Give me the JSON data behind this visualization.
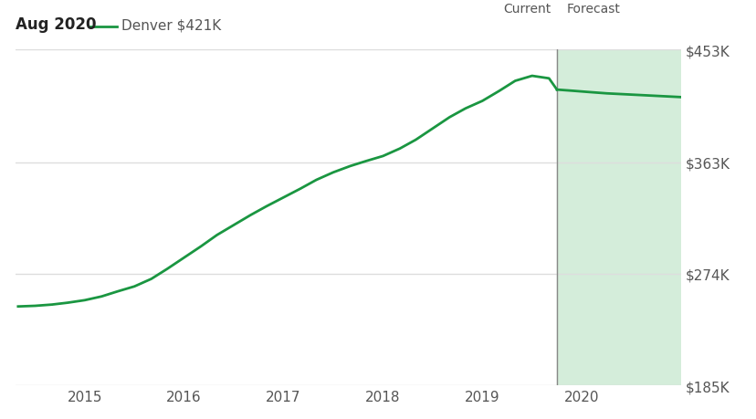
{
  "title_date": "Aug 2020",
  "legend_label": "Denver $421K",
  "line_color": "#1a9641",
  "forecast_bg_color": "#d4edda",
  "current_line_color": "#888888",
  "background_color": "#ffffff",
  "grid_color": "#dddddd",
  "ytick_labels": [
    "$185K",
    "$274K",
    "$363K",
    "$453K"
  ],
  "ytick_values": [
    185000,
    274000,
    363000,
    453000
  ],
  "ylim": [
    185000,
    453000
  ],
  "xtick_labels": [
    "2015",
    "2016",
    "2017",
    "2018",
    "2019",
    "2020"
  ],
  "xtick_values": [
    2015,
    2016,
    2017,
    2018,
    2019,
    2020
  ],
  "xlim_start": 2014.3,
  "xlim_end": 2021.0,
  "current_x": 2019.75,
  "forecast_end_x": 2021.0,
  "current_label": "Current",
  "forecast_label": "Forecast",
  "history_x": [
    2014.33,
    2014.5,
    2014.67,
    2014.83,
    2015.0,
    2015.17,
    2015.33,
    2015.5,
    2015.67,
    2015.83,
    2016.0,
    2016.17,
    2016.33,
    2016.5,
    2016.67,
    2016.83,
    2017.0,
    2017.17,
    2017.33,
    2017.5,
    2017.67,
    2017.83,
    2018.0,
    2018.17,
    2018.33,
    2018.5,
    2018.67,
    2018.83,
    2019.0,
    2019.17,
    2019.33,
    2019.5,
    2019.67,
    2019.75
  ],
  "history_y": [
    248000,
    248500,
    249500,
    251000,
    253000,
    256000,
    260000,
    264000,
    270000,
    278000,
    287000,
    296000,
    305000,
    313000,
    321000,
    328000,
    335000,
    342000,
    349000,
    355000,
    360000,
    364000,
    368000,
    374000,
    381000,
    390000,
    399000,
    406000,
    412000,
    420000,
    428000,
    432000,
    430000,
    421000
  ],
  "forecast_x": [
    2019.75,
    2019.92,
    2020.08,
    2020.25,
    2020.5,
    2020.75,
    2021.0
  ],
  "forecast_y": [
    421000,
    420000,
    419000,
    418000,
    417000,
    416000,
    415000
  ]
}
